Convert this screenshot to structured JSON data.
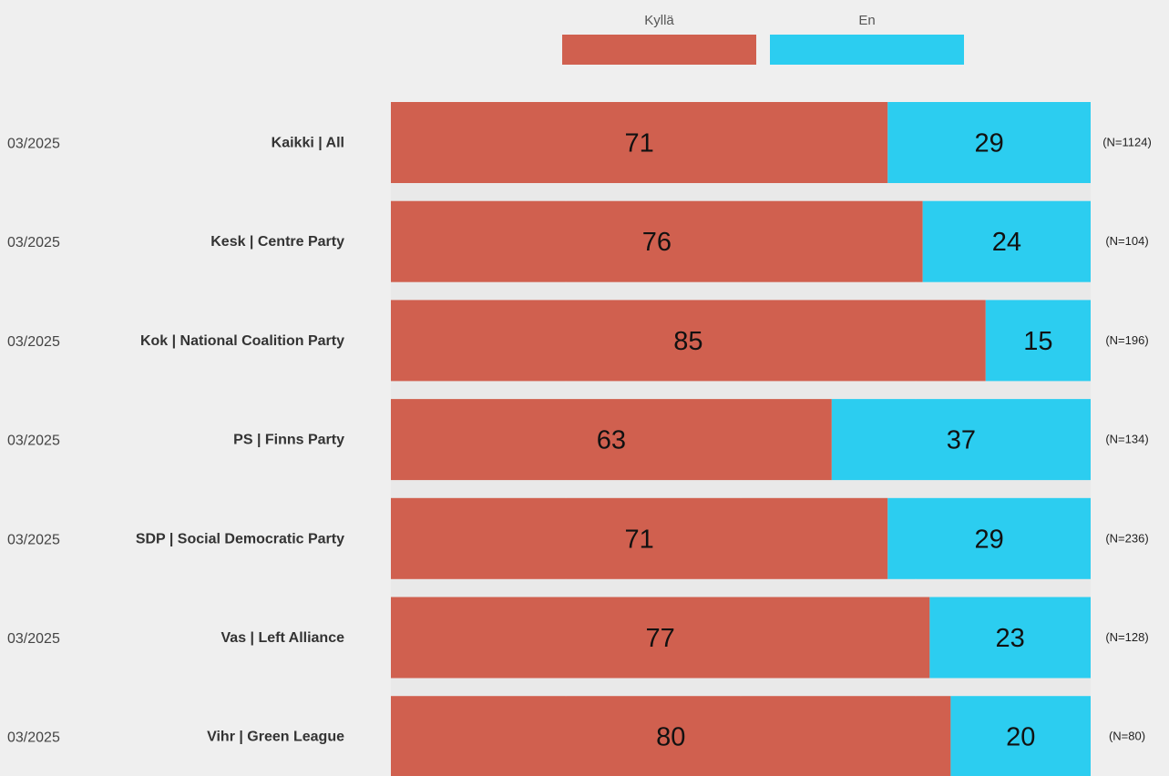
{
  "chart_data": {
    "type": "bar",
    "orientation": "horizontal",
    "stacked": true,
    "percent": true,
    "xlim": [
      0,
      100
    ],
    "grid": true,
    "legend_position": "top",
    "title": "",
    "xlabel": "",
    "ylabel": "",
    "series": [
      {
        "name": "Kyllä",
        "color": "#d0604f",
        "values": [
          71,
          76,
          85,
          63,
          71,
          77,
          80
        ]
      },
      {
        "name": "En",
        "color": "#2ccdf0",
        "values": [
          29,
          24,
          15,
          37,
          29,
          23,
          20
        ]
      }
    ],
    "rows": [
      {
        "date": "03/2025",
        "label": "Kaikki | All",
        "n": "(N=1124)"
      },
      {
        "date": "03/2025",
        "label": "Kesk | Centre Party",
        "n": "(N=104)"
      },
      {
        "date": "03/2025",
        "label": "Kok | National Coalition Party",
        "n": "(N=196)"
      },
      {
        "date": "03/2025",
        "label": "PS | Finns Party",
        "n": "(N=134)"
      },
      {
        "date": "03/2025",
        "label": "SDP | Social Democratic Party",
        "n": "(N=236)"
      },
      {
        "date": "03/2025",
        "label": "Vas | Left Alliance",
        "n": "(N=128)"
      },
      {
        "date": "03/2025",
        "label": "Vihr | Green League",
        "n": "(N=80)"
      }
    ]
  }
}
